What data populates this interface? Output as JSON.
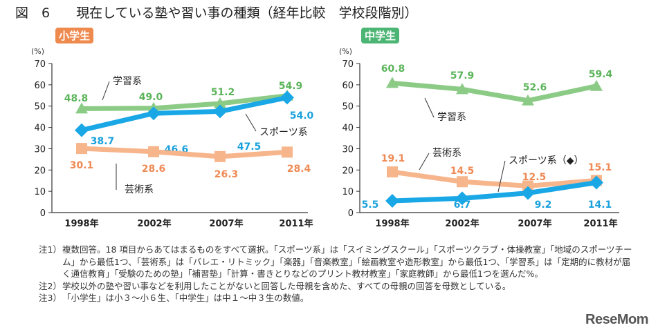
{
  "title": "図　6　　現在している塾や習い事の種類（経年比較　学校段階別）",
  "logo": "ReseMom",
  "colors": {
    "study": "#8ccb86",
    "sports": "#1aa7e6",
    "arts": "#f7b58c",
    "badge_elem": "#ef8a4f",
    "badge_mid": "#4cb574",
    "study_text": "#5bb45a",
    "sports_text": "#1aa0dc",
    "arts_text": "#ee8a55"
  },
  "chart_data": [
    {
      "type": "line",
      "badge": "小学生",
      "ylabel": "(%)",
      "ylim": [
        0,
        70
      ],
      "yticks": [
        "0",
        "10",
        "20",
        "30",
        "40",
        "50",
        "60",
        "70"
      ],
      "categories": [
        "1998年",
        "2002年",
        "2007年",
        "2011年"
      ],
      "series": [
        {
          "name": "学習系",
          "marker": "triangle",
          "values": [
            48.8,
            49.0,
            51.2,
            54.9
          ]
        },
        {
          "name": "スポーツ系",
          "marker": "diamond",
          "values": [
            38.7,
            46.6,
            47.5,
            54.0
          ]
        },
        {
          "name": "芸術系",
          "marker": "square",
          "values": [
            30.1,
            28.6,
            26.3,
            28.4
          ]
        }
      ]
    },
    {
      "type": "line",
      "badge": "中学生",
      "ylabel": "(%)",
      "ylim": [
        0,
        70
      ],
      "yticks": [
        "0",
        "10",
        "20",
        "30",
        "40",
        "50",
        "60",
        "70"
      ],
      "categories": [
        "1998年",
        "2002年",
        "2007年",
        "2011年"
      ],
      "series": [
        {
          "name": "学習系",
          "marker": "triangle",
          "values": [
            60.8,
            57.9,
            52.6,
            59.4
          ]
        },
        {
          "name": "芸術系",
          "marker": "square",
          "values": [
            19.1,
            14.5,
            12.5,
            15.1
          ]
        },
        {
          "name": "スポーツ系（◆）",
          "marker": "diamond",
          "values": [
            5.5,
            6.7,
            9.2,
            14.1
          ]
        }
      ]
    }
  ],
  "notes": [
    {
      "k": "注1）",
      "t": "複数回答。18 項目からあてはまるものをすべて選択。「スポーツ系」は「スイミングスクール」「スポーツクラブ・体操教室」「地域のスポーツチーム」から最低1つ、「芸術系」は「バレエ・リトミック」「楽器」「音楽教室」「絵画教室や造形教室」から最低1つ、「学習系」は「定期的に教材が届く通信教育」「受験のための塾」「補習塾」「計算・書きとりなどのプリント教材教室」「家庭教師」から最低1つを選んだ%。"
    },
    {
      "k": "注2）",
      "t": "学校以外の塾や習い事などを利用したことがないと回答した母親を含めた、すべての母親の回答を母数としている。"
    },
    {
      "k": "注3）",
      "t": "「小学生」は小３〜小６生、「中学生」は中１〜中３生の数値。"
    }
  ]
}
